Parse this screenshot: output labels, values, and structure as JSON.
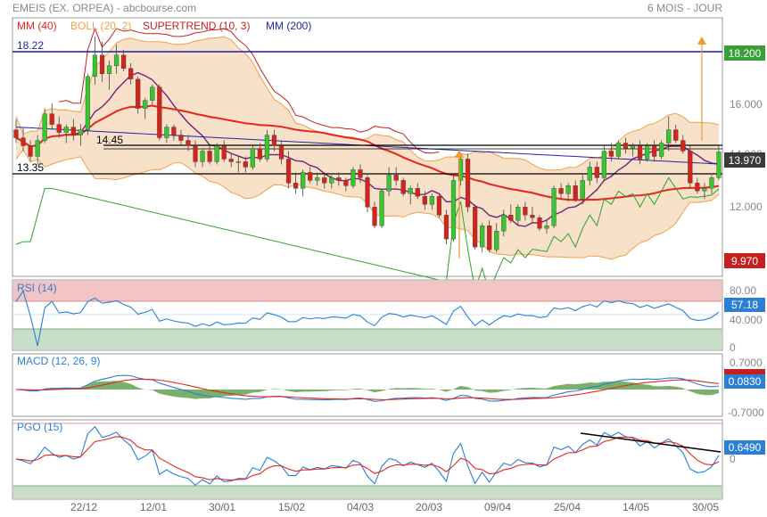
{
  "header": {
    "title": "EMEIS (EX. ORPEA) - abcbourse.com",
    "period": "6 MOIS - JOUR"
  },
  "legend": {
    "mm40": "MM (40)",
    "boll": "BOLL (20, 2)",
    "supertrend": "SUPERTREND (10, 3)",
    "mm200": "MM (200)"
  },
  "colors": {
    "mm40": "#e5251e",
    "boll": "#f0a04b",
    "boll_fill": "#f6dcc0",
    "supertrend": "#c62020",
    "supertrend_up": "#2aa52a",
    "mm200": "#2224a8",
    "candle_up": "#38c530",
    "candle_down": "#d4231c",
    "rsi": "#2d7fd4",
    "macd": "#2d7fd4",
    "signal": "#e5251e",
    "histogram": "#6aa85a",
    "pgo": "#2d7fd4",
    "pgo_signal": "#e5251e",
    "price_badge": "#3aa035",
    "low_badge": "#c42020",
    "rsi_over": "#f2c4c4",
    "rsi_under": "#c8dec8"
  },
  "price_labels": {
    "ref_high": "18.22",
    "ref_mid": "14.45",
    "ref_low": "13.35",
    "badge_high": "18.200",
    "badge_last": "13.970",
    "badge_low": "9.970"
  },
  "x_labels": [
    "22/12",
    "12/01",
    "30/01",
    "15/02",
    "04/03",
    "20/03",
    "09/04",
    "25/04",
    "14/05",
    "30/05"
  ],
  "y_labels": {
    "price": [
      "16.000",
      "14.000",
      "12.000"
    ],
    "rsi": [
      "80.00",
      "40.000",
      "0"
    ],
    "macd": [
      "0.7000",
      "-0.7000"
    ],
    "pgo": [
      "0"
    ]
  },
  "panels": {
    "rsi": {
      "label": "RSI (14)",
      "value": "57.18"
    },
    "macd": {
      "label": "MACD (12, 26, 9)",
      "value": "0.0830",
      "signal_value": "0.1130"
    },
    "pgo": {
      "label": "PGO (15)",
      "value": "0.6490"
    }
  },
  "chart_data": {
    "type": "candlestick",
    "x_ticks": [
      "22/12",
      "12/01",
      "30/01",
      "15/02",
      "04/03",
      "20/03",
      "09/04",
      "25/04",
      "14/05",
      "30/05"
    ],
    "ylim": [
      9.3,
      19.0
    ],
    "ohlc": [
      [
        14.8,
        15.2,
        14.3,
        14.5
      ],
      [
        14.5,
        14.9,
        14.0,
        14.2
      ],
      [
        14.2,
        14.4,
        13.6,
        13.8
      ],
      [
        13.8,
        14.6,
        13.5,
        14.4
      ],
      [
        14.4,
        15.6,
        14.3,
        15.4
      ],
      [
        15.4,
        15.8,
        14.8,
        15.0
      ],
      [
        15.0,
        15.3,
        14.5,
        14.7
      ],
      [
        14.7,
        15.0,
        14.3,
        14.9
      ],
      [
        14.9,
        15.2,
        14.4,
        14.6
      ],
      [
        14.6,
        15.0,
        14.2,
        14.8
      ],
      [
        14.8,
        16.9,
        14.6,
        16.8
      ],
      [
        16.8,
        18.3,
        16.5,
        17.6
      ],
      [
        17.6,
        18.1,
        16.6,
        16.9
      ],
      [
        16.9,
        17.4,
        16.3,
        17.2
      ],
      [
        17.2,
        18.0,
        16.9,
        17.6
      ],
      [
        17.6,
        17.8,
        17.0,
        17.1
      ],
      [
        17.1,
        17.3,
        16.5,
        16.7
      ],
      [
        16.7,
        16.8,
        15.4,
        15.6
      ],
      [
        15.6,
        16.0,
        15.2,
        15.9
      ],
      [
        15.9,
        16.5,
        15.7,
        16.4
      ],
      [
        16.4,
        16.5,
        14.4,
        14.5
      ],
      [
        14.5,
        15.0,
        14.3,
        14.9
      ],
      [
        14.9,
        15.0,
        14.4,
        14.6
      ],
      [
        14.6,
        14.8,
        14.2,
        14.4
      ],
      [
        14.4,
        14.6,
        14.0,
        14.2
      ],
      [
        14.2,
        14.4,
        13.4,
        13.6
      ],
      [
        13.6,
        14.1,
        13.4,
        14.0
      ],
      [
        14.0,
        14.2,
        13.5,
        13.6
      ],
      [
        13.6,
        14.3,
        13.5,
        14.2
      ],
      [
        14.2,
        14.4,
        13.6,
        13.7
      ],
      [
        13.7,
        13.9,
        13.4,
        13.6
      ],
      [
        13.6,
        13.8,
        13.2,
        13.6
      ],
      [
        13.6,
        13.8,
        13.2,
        13.4
      ],
      [
        13.4,
        14.2,
        13.3,
        14.1
      ],
      [
        14.1,
        14.3,
        13.6,
        13.7
      ],
      [
        13.7,
        14.8,
        13.6,
        14.6
      ],
      [
        14.6,
        14.8,
        14.0,
        14.2
      ],
      [
        14.2,
        14.4,
        13.5,
        13.7
      ],
      [
        13.7,
        14.0,
        12.6,
        12.8
      ],
      [
        12.8,
        13.2,
        12.4,
        12.6
      ],
      [
        12.6,
        13.3,
        12.3,
        13.2
      ],
      [
        13.2,
        13.4,
        12.8,
        12.9
      ],
      [
        12.9,
        13.2,
        12.7,
        13.0
      ],
      [
        13.0,
        13.2,
        12.6,
        12.8
      ],
      [
        12.8,
        13.1,
        12.6,
        13.0
      ],
      [
        13.0,
        13.2,
        12.7,
        12.9
      ],
      [
        12.9,
        13.0,
        12.5,
        12.7
      ],
      [
        12.7,
        13.4,
        12.6,
        13.3
      ],
      [
        13.3,
        13.5,
        12.8,
        13.0
      ],
      [
        13.0,
        13.1,
        11.7,
        11.9
      ],
      [
        11.9,
        12.1,
        11.1,
        11.2
      ],
      [
        11.2,
        12.6,
        11.1,
        12.5
      ],
      [
        12.5,
        13.4,
        12.3,
        13.1
      ],
      [
        13.1,
        13.4,
        12.7,
        12.9
      ],
      [
        12.9,
        13.0,
        12.3,
        12.4
      ],
      [
        12.4,
        12.7,
        12.0,
        12.6
      ],
      [
        12.6,
        12.8,
        12.2,
        12.3
      ],
      [
        12.3,
        12.5,
        11.8,
        12.0
      ],
      [
        12.0,
        12.4,
        11.8,
        12.3
      ],
      [
        12.3,
        12.4,
        11.5,
        11.6
      ],
      [
        11.6,
        11.8,
        10.5,
        10.7
      ],
      [
        10.7,
        13.1,
        10.6,
        12.9
      ],
      [
        12.9,
        13.9,
        12.7,
        13.7
      ],
      [
        13.7,
        13.9,
        11.7,
        11.9
      ],
      [
        11.9,
        12.0,
        10.3,
        10.4
      ],
      [
        10.4,
        11.3,
        10.2,
        11.2
      ],
      [
        11.2,
        11.4,
        10.2,
        10.3
      ],
      [
        10.3,
        11.3,
        10.2,
        11.0
      ],
      [
        11.0,
        11.8,
        10.8,
        11.6
      ],
      [
        11.6,
        12.0,
        11.3,
        11.4
      ],
      [
        11.4,
        12.0,
        11.2,
        11.9
      ],
      [
        11.9,
        12.1,
        11.4,
        11.6
      ],
      [
        11.6,
        11.9,
        11.3,
        11.5
      ],
      [
        11.5,
        11.6,
        11.0,
        11.1
      ],
      [
        11.1,
        11.4,
        10.9,
        11.2
      ],
      [
        11.2,
        12.7,
        11.1,
        12.6
      ],
      [
        12.6,
        12.8,
        12.2,
        12.4
      ],
      [
        12.4,
        12.8,
        12.1,
        12.7
      ],
      [
        12.7,
        12.9,
        12.1,
        12.2
      ],
      [
        12.2,
        13.1,
        12.0,
        12.9
      ],
      [
        12.9,
        13.6,
        12.7,
        13.4
      ],
      [
        13.4,
        13.6,
        12.8,
        13.0
      ],
      [
        13.0,
        14.2,
        12.9,
        14.0
      ],
      [
        14.0,
        14.3,
        13.6,
        13.8
      ],
      [
        13.8,
        14.4,
        13.7,
        14.3
      ],
      [
        14.3,
        14.5,
        13.9,
        14.1
      ],
      [
        14.1,
        14.3,
        13.8,
        14.2
      ],
      [
        14.2,
        14.4,
        13.5,
        13.7
      ],
      [
        13.7,
        14.3,
        13.6,
        14.2
      ],
      [
        14.2,
        14.4,
        13.6,
        13.8
      ],
      [
        13.8,
        14.4,
        13.7,
        14.3
      ],
      [
        14.3,
        15.3,
        14.0,
        14.8
      ],
      [
        14.8,
        15.0,
        14.3,
        14.4
      ],
      [
        14.4,
        14.6,
        13.9,
        14.0
      ],
      [
        14.0,
        14.2,
        12.6,
        12.8
      ],
      [
        12.8,
        13.0,
        12.4,
        12.5
      ],
      [
        12.5,
        12.8,
        12.2,
        12.6
      ],
      [
        12.6,
        13.1,
        12.4,
        13.0
      ],
      [
        13.0,
        14.2,
        12.9,
        13.97
      ]
    ],
    "indicators": [
      "MM (40)",
      "BOLL (20, 2)",
      "SUPERTREND (10, 3)",
      "MM (200)",
      "RSI (14)",
      "MACD (12, 26, 9)",
      "PGO (15)"
    ],
    "reference_lines": [
      18.22,
      14.45,
      13.35
    ],
    "last_price": 13.97,
    "rsi_bands": [
      30,
      70
    ],
    "grid": false
  }
}
